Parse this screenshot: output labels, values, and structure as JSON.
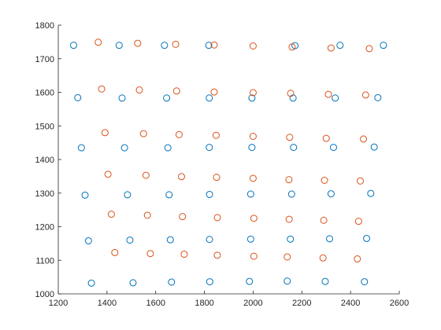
{
  "chart_data": {
    "type": "scatter",
    "title": "",
    "xlabel": "",
    "ylabel": "",
    "xlim": [
      1200,
      2600
    ],
    "ylim": [
      1000,
      1800
    ],
    "xticks": [
      1200,
      1400,
      1600,
      1800,
      2000,
      2200,
      2400,
      2600
    ],
    "yticks": [
      1000,
      1100,
      1200,
      1300,
      1400,
      1500,
      1600,
      1700,
      1800
    ],
    "grid": false,
    "legend": "none",
    "marker": "circle-open",
    "series": [
      {
        "color": "#0072BD",
        "points": [
          [
            1263,
            1740
          ],
          [
            1450,
            1740
          ],
          [
            1636,
            1740
          ],
          [
            1818,
            1740
          ],
          [
            2172,
            1739
          ],
          [
            2357,
            1740
          ],
          [
            2535,
            1740
          ],
          [
            1280,
            1584
          ],
          [
            1462,
            1583
          ],
          [
            1645,
            1583
          ],
          [
            1820,
            1583
          ],
          [
            1995,
            1583
          ],
          [
            2164,
            1583
          ],
          [
            2337,
            1583
          ],
          [
            2512,
            1584
          ],
          [
            1295,
            1435
          ],
          [
            1472,
            1435
          ],
          [
            1650,
            1435
          ],
          [
            1820,
            1436
          ],
          [
            1995,
            1436
          ],
          [
            2166,
            1436
          ],
          [
            2330,
            1436
          ],
          [
            2497,
            1437
          ],
          [
            1310,
            1294
          ],
          [
            1484,
            1295
          ],
          [
            1655,
            1295
          ],
          [
            1821,
            1296
          ],
          [
            1990,
            1297
          ],
          [
            2158,
            1297
          ],
          [
            2320,
            1298
          ],
          [
            2483,
            1299
          ],
          [
            1324,
            1158
          ],
          [
            1494,
            1160
          ],
          [
            1660,
            1161
          ],
          [
            1821,
            1162
          ],
          [
            1990,
            1163
          ],
          [
            2153,
            1163
          ],
          [
            2314,
            1164
          ],
          [
            2466,
            1165
          ],
          [
            1336,
            1032
          ],
          [
            1507,
            1033
          ],
          [
            1665,
            1035
          ],
          [
            1822,
            1036
          ],
          [
            1985,
            1037
          ],
          [
            2140,
            1038
          ],
          [
            2296,
            1037
          ],
          [
            2457,
            1036
          ]
        ]
      },
      {
        "color": "#D95319",
        "points": [
          [
            1364,
            1749
          ],
          [
            1526,
            1746
          ],
          [
            1682,
            1743
          ],
          [
            1840,
            1741
          ],
          [
            2000,
            1738
          ],
          [
            2160,
            1735
          ],
          [
            2320,
            1732
          ],
          [
            2477,
            1730
          ],
          [
            1378,
            1610
          ],
          [
            1533,
            1607
          ],
          [
            1686,
            1604
          ],
          [
            1840,
            1601
          ],
          [
            2000,
            1599
          ],
          [
            2154,
            1597
          ],
          [
            2309,
            1594
          ],
          [
            2462,
            1592
          ],
          [
            1392,
            1480
          ],
          [
            1550,
            1477
          ],
          [
            1696,
            1474
          ],
          [
            1848,
            1472
          ],
          [
            2000,
            1469
          ],
          [
            2150,
            1466
          ],
          [
            2300,
            1463
          ],
          [
            2453,
            1461
          ],
          [
            1404,
            1356
          ],
          [
            1560,
            1353
          ],
          [
            1706,
            1349
          ],
          [
            1850,
            1347
          ],
          [
            2000,
            1344
          ],
          [
            2147,
            1340
          ],
          [
            2293,
            1338
          ],
          [
            2440,
            1336
          ],
          [
            1418,
            1237
          ],
          [
            1566,
            1234
          ],
          [
            1710,
            1230
          ],
          [
            1853,
            1227
          ],
          [
            2003,
            1225
          ],
          [
            2148,
            1222
          ],
          [
            2290,
            1219
          ],
          [
            2433,
            1216
          ],
          [
            1432,
            1123
          ],
          [
            1578,
            1120
          ],
          [
            1717,
            1118
          ],
          [
            1853,
            1115
          ],
          [
            2003,
            1112
          ],
          [
            2140,
            1110
          ],
          [
            2287,
            1107
          ],
          [
            2428,
            1104
          ]
        ]
      }
    ]
  }
}
